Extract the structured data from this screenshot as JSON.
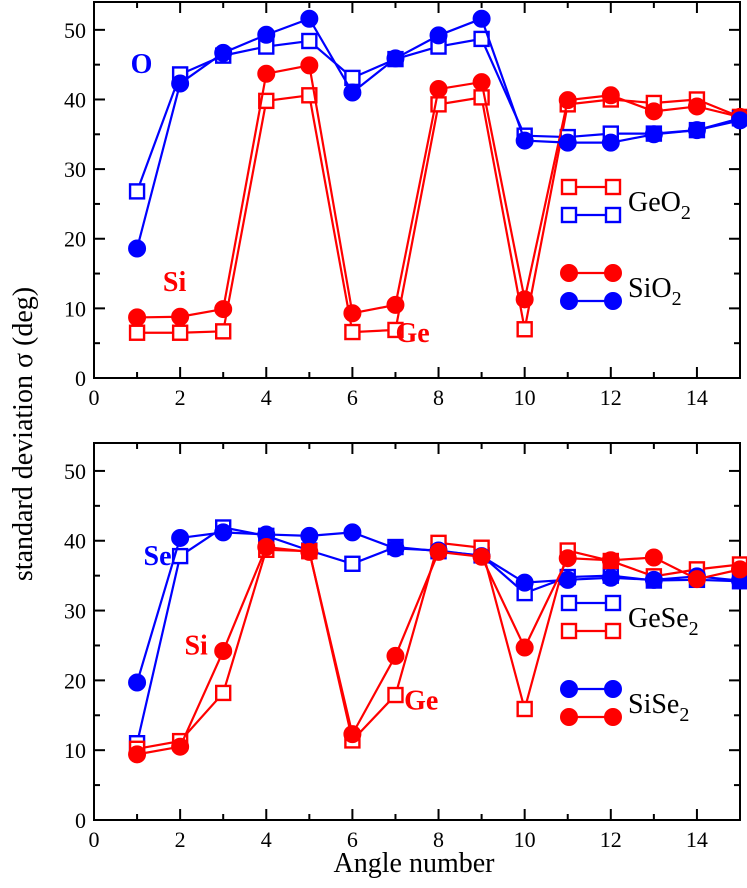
{
  "colors": {
    "red": "#ff0000",
    "blue": "#0000ff",
    "axis": "#000000"
  },
  "chart_data": [
    {
      "type": "line",
      "panel": "top",
      "xlabel": "",
      "ylabel": "standard deviation σ (deg)",
      "xlim": [
        0,
        15
      ],
      "ylim": [
        0,
        54
      ],
      "x_ticks": [
        0,
        2,
        4,
        6,
        8,
        10,
        12,
        14
      ],
      "y_ticks": [
        0,
        10,
        20,
        30,
        40,
        50
      ],
      "x_tick_labels": [
        "0",
        "2",
        "4",
        "6",
        "8",
        "10",
        "12",
        "14"
      ],
      "y_tick_labels": [
        "0",
        "10",
        "20",
        "30",
        "40",
        "50"
      ],
      "x": [
        1,
        2,
        3,
        4,
        5,
        6,
        7,
        8,
        9,
        10,
        11,
        12,
        13,
        14,
        15
      ],
      "series": [
        {
          "id": "geo2-ge",
          "color": "#ff0000",
          "marker": "square-open",
          "values": [
            6.5,
            6.5,
            6.7,
            39.8,
            40.6,
            6.6,
            6.9,
            39.3,
            40.3,
            7.0,
            39.3,
            40.0,
            39.5,
            40.0,
            37.5
          ]
        },
        {
          "id": "geo2-o",
          "color": "#0000ff",
          "marker": "square-open",
          "values": [
            26.8,
            43.6,
            46.3,
            47.6,
            48.4,
            43.1,
            45.8,
            47.6,
            48.7,
            34.8,
            34.6,
            35.1,
            35.1,
            35.6,
            37.3
          ]
        },
        {
          "id": "sio2-si",
          "color": "#ff0000",
          "marker": "circle-filled",
          "values": [
            8.7,
            8.8,
            9.9,
            43.7,
            44.9,
            9.3,
            10.5,
            41.5,
            42.5,
            11.3,
            39.9,
            40.6,
            38.3,
            39.0,
            37.5
          ]
        },
        {
          "id": "sio2-o",
          "color": "#0000ff",
          "marker": "circle-filled",
          "values": [
            18.6,
            42.3,
            46.7,
            49.3,
            51.6,
            41.0,
            45.9,
            49.2,
            51.6,
            34.1,
            33.8,
            33.8,
            35.0,
            35.6,
            37.0
          ]
        }
      ],
      "legend": {
        "position": "right",
        "entries": [
          {
            "label": "GeO",
            "sub": "2",
            "markers": [
              "geo2-ge",
              "geo2-o"
            ]
          },
          {
            "label": "SiO",
            "sub": "2",
            "markers": [
              "sio2-si",
              "sio2-o"
            ]
          }
        ]
      },
      "annotations": [
        {
          "id": "ann-o",
          "text": "O",
          "color": "#0000ff",
          "x": 0.85,
          "y": 43.8
        },
        {
          "id": "ann-si",
          "text": "Si",
          "color": "#ff0000",
          "x": 1.6,
          "y": 12.5
        },
        {
          "id": "ann-ge",
          "text": "Ge",
          "color": "#ff0000",
          "x": 7.0,
          "y": 5.2
        }
      ]
    },
    {
      "type": "line",
      "panel": "bottom",
      "xlabel": "Angle number",
      "ylabel": "standard deviation σ (deg)",
      "xlim": [
        0,
        15
      ],
      "ylim": [
        0,
        54
      ],
      "x_ticks": [
        0,
        2,
        4,
        6,
        8,
        10,
        12,
        14
      ],
      "y_ticks": [
        0,
        10,
        20,
        30,
        40,
        50
      ],
      "x_tick_labels": [
        "0",
        "2",
        "4",
        "6",
        "8",
        "10",
        "12",
        "14"
      ],
      "y_tick_labels": [
        "0",
        "10",
        "20",
        "30",
        "40",
        "50"
      ],
      "x": [
        1,
        2,
        3,
        4,
        5,
        6,
        7,
        8,
        9,
        10,
        11,
        12,
        13,
        14,
        15
      ],
      "series": [
        {
          "id": "gese2-se",
          "color": "#0000ff",
          "marker": "square-open",
          "values": [
            11.0,
            37.8,
            41.9,
            40.7,
            38.6,
            36.7,
            39.1,
            38.5,
            37.9,
            32.5,
            34.8,
            35.0,
            34.3,
            34.4,
            34.2
          ]
        },
        {
          "id": "gese2-ge",
          "color": "#ff0000",
          "marker": "square-open",
          "values": [
            10.2,
            11.3,
            18.2,
            38.7,
            38.5,
            11.4,
            17.9,
            39.7,
            39.0,
            15.9,
            38.6,
            37.1,
            34.9,
            35.9,
            36.6
          ]
        },
        {
          "id": "sise2-se",
          "color": "#0000ff",
          "marker": "circle-filled",
          "values": [
            19.7,
            40.4,
            41.2,
            40.9,
            40.7,
            41.2,
            38.9,
            38.6,
            37.8,
            34.0,
            34.4,
            34.7,
            34.4,
            34.9,
            34.3
          ]
        },
        {
          "id": "sise2-si",
          "color": "#ff0000",
          "marker": "circle-filled",
          "values": [
            9.4,
            10.5,
            24.2,
            39.1,
            38.4,
            12.3,
            23.5,
            38.4,
            37.7,
            24.7,
            37.5,
            37.2,
            37.6,
            34.5,
            35.9
          ]
        }
      ],
      "legend": {
        "position": "right",
        "entries": [
          {
            "label": "GeSe",
            "sub": "2",
            "markers": [
              "gese2-se",
              "gese2-ge"
            ]
          },
          {
            "label": "SiSe",
            "sub": "2",
            "markers": [
              "sise2-se",
              "sise2-si"
            ]
          }
        ]
      },
      "annotations": [
        {
          "id": "ann-se",
          "text": "Se",
          "color": "#0000ff",
          "x": 1.15,
          "y": 36.5
        },
        {
          "id": "ann-si",
          "text": "Si",
          "color": "#ff0000",
          "x": 2.1,
          "y": 23.7
        },
        {
          "id": "ann-ge",
          "text": "Ge",
          "color": "#ff0000",
          "x": 7.2,
          "y": 15.8
        }
      ]
    }
  ]
}
